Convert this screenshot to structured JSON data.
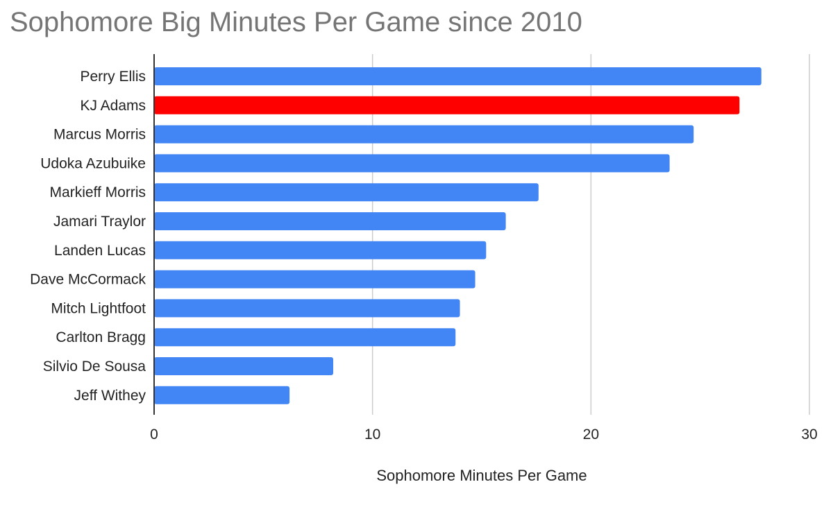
{
  "chart_data": {
    "type": "bar",
    "orientation": "horizontal",
    "title": "Sophomore Big Minutes Per Game since 2010",
    "xlabel": "Sophomore Minutes Per Game",
    "ylabel": "",
    "xlim": [
      0,
      30
    ],
    "x_ticks": [
      0,
      10,
      20,
      30
    ],
    "grid": true,
    "legend": "none",
    "categories": [
      "Perry Ellis",
      "KJ Adams",
      "Marcus Morris",
      "Udoka Azubuike",
      "Markieff Morris",
      "Jamari Traylor",
      "Landen Lucas",
      "Dave McCormack",
      "Mitch Lightfoot",
      "Carlton Bragg",
      "Silvio De Sousa",
      "Jeff Withey"
    ],
    "values": [
      27.8,
      26.8,
      24.7,
      23.6,
      17.6,
      16.1,
      15.2,
      14.7,
      14.0,
      13.8,
      8.2,
      6.2
    ],
    "colors": {
      "default": "#4285f4",
      "highlight": "#ff0000",
      "highlight_category": "KJ Adams",
      "grid": "#cccccc",
      "axis": "#333333",
      "title": "#757575"
    }
  }
}
